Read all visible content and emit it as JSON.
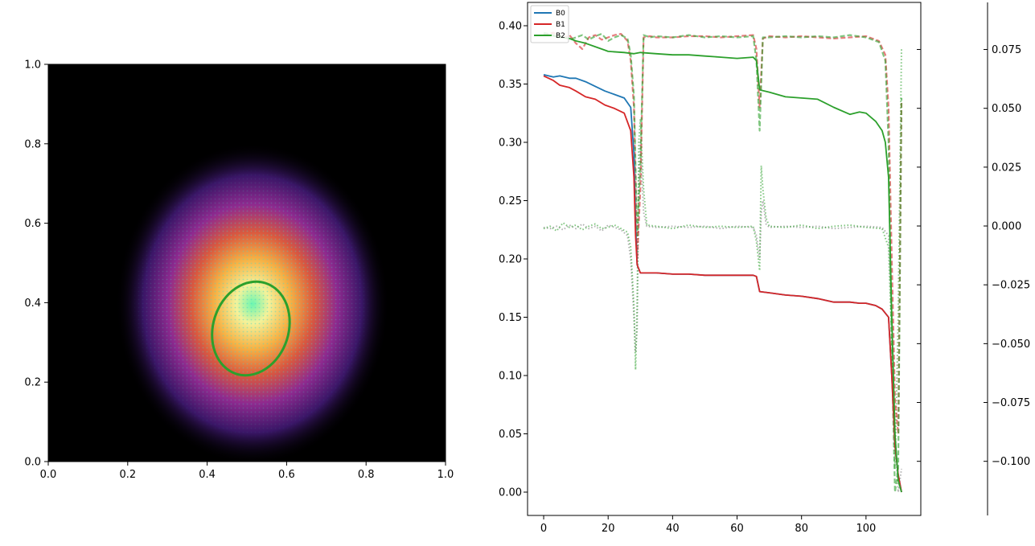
{
  "chart_data": [
    {
      "type": "heatmap",
      "xlim": [
        0,
        1
      ],
      "ylim": [
        0,
        1
      ],
      "x_ticks": [
        "0.0",
        "0.2",
        "0.4",
        "0.6",
        "0.8",
        "1.0"
      ],
      "y_ticks": [
        "0.0",
        "0.2",
        "0.4",
        "0.6",
        "0.8",
        "1.0"
      ],
      "background": "#000000",
      "distribution_center": [
        0.51,
        0.33
      ],
      "ellipse": {
        "center": [
          0.51,
          0.335
        ],
        "semi_axes": [
          0.12,
          0.095
        ],
        "rotation_deg": -72,
        "color": "#2ca02c"
      }
    },
    {
      "type": "line",
      "xlim": [
        -5,
        117
      ],
      "ylim": [
        -0.02,
        0.42
      ],
      "x_ticks": [
        "0",
        "20",
        "40",
        "60",
        "80",
        "100"
      ],
      "y_ticks": [
        "0.00",
        "0.05",
        "0.10",
        "0.15",
        "0.20",
        "0.25",
        "0.30",
        "0.35",
        "0.40"
      ],
      "legend_position": "top-left",
      "series": [
        {
          "name": "B0",
          "color": "#1f77b4",
          "style": "solid",
          "x": [
            0,
            3,
            5,
            8,
            10,
            13,
            16,
            19,
            22,
            25,
            27,
            28,
            28.5,
            29,
            30,
            35,
            40,
            45,
            50,
            55,
            60,
            65,
            66,
            67,
            70,
            75,
            80,
            85,
            90,
            95,
            98,
            100,
            103,
            105,
            107,
            108,
            109,
            110,
            111
          ],
          "values": [
            0.358,
            0.356,
            0.357,
            0.355,
            0.355,
            0.352,
            0.348,
            0.344,
            0.341,
            0.338,
            0.33,
            0.29,
            0.23,
            0.195,
            0.188,
            0.188,
            0.187,
            0.187,
            0.186,
            0.186,
            0.186,
            0.186,
            0.185,
            0.172,
            0.171,
            0.169,
            0.168,
            0.166,
            0.163,
            0.163,
            0.162,
            0.162,
            0.16,
            0.157,
            0.15,
            0.1,
            0.04,
            0.015,
            0.0
          ]
        },
        {
          "name": "B1",
          "color": "#d62728",
          "style": "solid",
          "x": [
            0,
            3,
            5,
            8,
            10,
            13,
            16,
            19,
            22,
            25,
            27,
            28,
            28.5,
            29,
            30,
            35,
            40,
            45,
            50,
            55,
            60,
            65,
            66,
            67,
            70,
            75,
            80,
            85,
            90,
            95,
            98,
            100,
            103,
            105,
            107,
            108,
            109,
            110,
            111
          ],
          "values": [
            0.357,
            0.353,
            0.349,
            0.347,
            0.344,
            0.339,
            0.337,
            0.332,
            0.329,
            0.325,
            0.31,
            0.27,
            0.22,
            0.195,
            0.188,
            0.188,
            0.187,
            0.187,
            0.186,
            0.186,
            0.186,
            0.186,
            0.185,
            0.172,
            0.171,
            0.169,
            0.168,
            0.166,
            0.163,
            0.163,
            0.162,
            0.162,
            0.16,
            0.157,
            0.15,
            0.1,
            0.04,
            0.015,
            0.0
          ]
        },
        {
          "name": "B2",
          "color": "#2ca02c",
          "style": "solid",
          "x": [
            0,
            2,
            5,
            8,
            10,
            13,
            16,
            19,
            20,
            25,
            28,
            30,
            35,
            40,
            45,
            50,
            55,
            60,
            65,
            66,
            67,
            70,
            75,
            80,
            85,
            90,
            95,
            98,
            100,
            103,
            105,
            106,
            107,
            108,
            109,
            110,
            111
          ],
          "values": [
            0.393,
            0.392,
            0.39,
            0.389,
            0.387,
            0.385,
            0.382,
            0.379,
            0.378,
            0.377,
            0.376,
            0.377,
            0.376,
            0.375,
            0.375,
            0.374,
            0.373,
            0.372,
            0.373,
            0.37,
            0.345,
            0.343,
            0.339,
            0.338,
            0.337,
            0.33,
            0.324,
            0.326,
            0.325,
            0.318,
            0.31,
            0.3,
            0.27,
            0.15,
            0.05,
            0.01,
            0.0
          ]
        }
      ],
      "dashed_series": [
        {
          "color": "#d62728",
          "x": [
            0,
            3,
            6,
            8,
            10,
            12,
            14,
            16,
            18,
            20,
            22,
            24,
            26,
            27,
            28,
            29,
            30,
            31,
            33,
            35,
            40,
            45,
            50,
            55,
            60,
            65,
            66,
            67,
            68,
            70,
            75,
            80,
            85,
            90,
            95,
            100,
            104,
            106,
            107,
            108,
            109,
            110,
            111
          ],
          "values": [
            0.392,
            0.394,
            0.389,
            0.392,
            0.385,
            0.38,
            0.39,
            0.392,
            0.388,
            0.39,
            0.392,
            0.393,
            0.387,
            0.37,
            0.33,
            0.2,
            0.26,
            0.39,
            0.391,
            0.39,
            0.39,
            0.391,
            0.391,
            0.39,
            0.391,
            0.392,
            0.38,
            0.33,
            0.389,
            0.391,
            0.39,
            0.391,
            0.39,
            0.389,
            0.39,
            0.391,
            0.387,
            0.375,
            0.33,
            0.2,
            0.08,
            0.05,
            0.335
          ]
        },
        {
          "color": "#2ca02c",
          "x": [
            0,
            3,
            6,
            8,
            10,
            12,
            14,
            16,
            18,
            20,
            22,
            24,
            26,
            27,
            28,
            29,
            30,
            31,
            33,
            35,
            40,
            45,
            50,
            55,
            60,
            65,
            66,
            67,
            68,
            70,
            75,
            80,
            85,
            90,
            95,
            100,
            104,
            106,
            107,
            108,
            109,
            110,
            111
          ],
          "values": [
            0.394,
            0.392,
            0.391,
            0.388,
            0.39,
            0.392,
            0.388,
            0.391,
            0.393,
            0.387,
            0.39,
            0.392,
            0.389,
            0.375,
            0.34,
            0.22,
            0.28,
            0.392,
            0.39,
            0.391,
            0.39,
            0.392,
            0.39,
            0.391,
            0.39,
            0.391,
            0.37,
            0.31,
            0.39,
            0.39,
            0.391,
            0.39,
            0.391,
            0.39,
            0.392,
            0.39,
            0.386,
            0.37,
            0.3,
            0.12,
            0.0,
            0.02,
            0.338
          ]
        }
      ],
      "dotted_series": [
        {
          "color": "#7f7f7f",
          "x": [
            0,
            2,
            4,
            6,
            8,
            10,
            12,
            14,
            16,
            18,
            20,
            22,
            24,
            26,
            27,
            28,
            28.5,
            29,
            29.5,
            30,
            31,
            32,
            35,
            40,
            45,
            50,
            55,
            60,
            65,
            66,
            67,
            67.5,
            68,
            69,
            70,
            75,
            80,
            85,
            90,
            95,
            100,
            105,
            107,
            108,
            109,
            110,
            111
          ],
          "values": [
            0.227,
            0.226,
            0.228,
            0.225,
            0.229,
            0.226,
            0.23,
            0.226,
            0.228,
            0.224,
            0.229,
            0.227,
            0.225,
            0.22,
            0.2,
            0.15,
            0.12,
            0.14,
            0.27,
            0.3,
            0.24,
            0.228,
            0.227,
            0.228,
            0.227,
            0.228,
            0.226,
            0.228,
            0.227,
            0.22,
            0.2,
            0.24,
            0.25,
            0.23,
            0.227,
            0.228,
            0.227,
            0.228,
            0.226,
            0.227,
            0.228,
            0.227,
            0.22,
            0.15,
            0.05,
            0.0,
            0.02
          ]
        },
        {
          "color": "#2ca02c",
          "x": [
            0,
            2,
            4,
            6,
            8,
            10,
            12,
            14,
            16,
            18,
            20,
            22,
            24,
            26,
            27,
            28,
            28.5,
            29,
            29.5,
            30,
            31,
            32,
            35,
            40,
            45,
            50,
            55,
            60,
            65,
            66,
            67,
            67.5,
            68,
            69,
            70,
            75,
            80,
            85,
            90,
            95,
            100,
            105,
            107,
            108,
            109,
            110,
            111
          ],
          "values": [
            0.226,
            0.228,
            0.224,
            0.231,
            0.227,
            0.229,
            0.225,
            0.228,
            0.23,
            0.226,
            0.227,
            0.229,
            0.226,
            0.223,
            0.21,
            0.16,
            0.105,
            0.16,
            0.3,
            0.32,
            0.26,
            0.229,
            0.228,
            0.226,
            0.229,
            0.227,
            0.228,
            0.227,
            0.228,
            0.215,
            0.19,
            0.28,
            0.26,
            0.235,
            0.228,
            0.227,
            0.229,
            0.226,
            0.228,
            0.229,
            0.227,
            0.226,
            0.21,
            0.13,
            0.02,
            0.15,
            0.38
          ]
        }
      ]
    },
    {
      "type": "line",
      "ylim": [
        -0.123,
        0.095
      ],
      "y_ticks": [
        "0.075",
        "0.050",
        "0.025",
        "0.000",
        "−0.025",
        "−0.050",
        "−0.075",
        "−0.100"
      ],
      "y_tick_values": [
        0.075,
        0.05,
        0.025,
        0.0,
        -0.025,
        -0.05,
        -0.075,
        -0.1
      ]
    }
  ]
}
